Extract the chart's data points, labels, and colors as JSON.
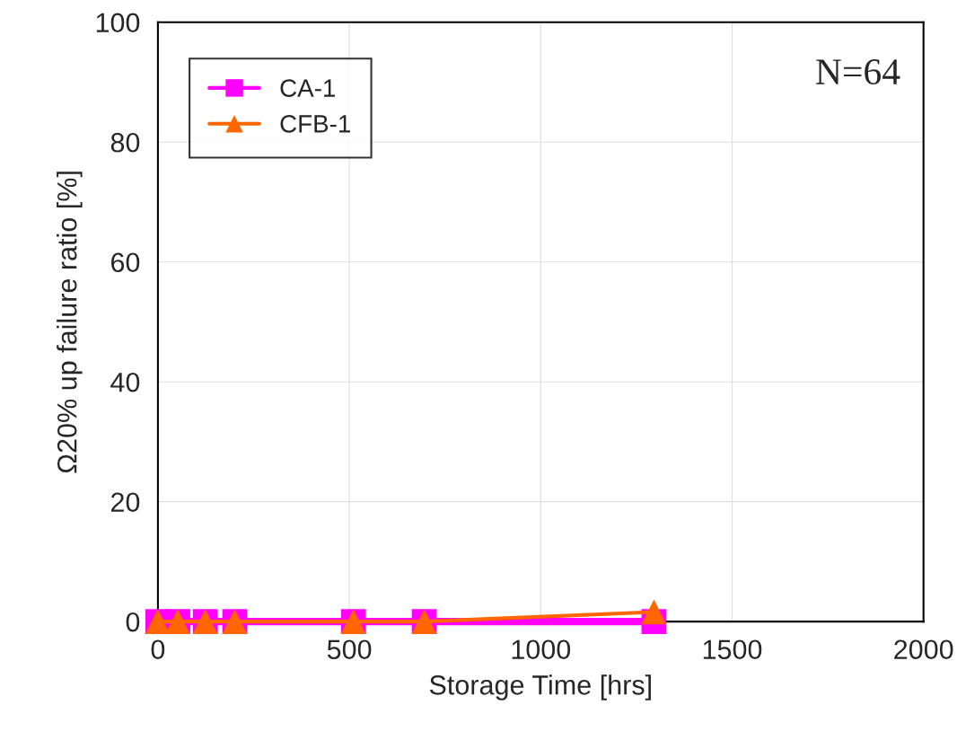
{
  "chart_data": {
    "type": "line",
    "xlabel": "Storage Time [hrs]",
    "ylabel": "Ω20% up failure ratio [%]",
    "xlim": [
      0,
      2000
    ],
    "xticks": [
      0,
      500,
      1000,
      1500,
      2000
    ],
    "ylim": [
      0,
      100
    ],
    "yticks": [
      0,
      20,
      40,
      60,
      80,
      100
    ],
    "grid": true,
    "legend": "top left",
    "line_style": "solid",
    "annotations": [
      "N=64"
    ],
    "series": [
      {
        "name": "CA-1",
        "color": "#ff00ff",
        "marker": "square",
        "x": [
          0,
          52,
          124,
          201,
          511,
          696,
          1296
        ],
        "values": [
          0,
          0,
          0,
          0,
          0,
          0,
          0
        ]
      },
      {
        "name": "CFB-1",
        "color": "#ff6600",
        "marker": "triangle",
        "x": [
          0,
          52,
          124,
          201,
          511,
          696,
          1296
        ],
        "values": [
          0,
          0,
          0,
          0,
          0,
          0,
          1.6
        ]
      }
    ]
  }
}
